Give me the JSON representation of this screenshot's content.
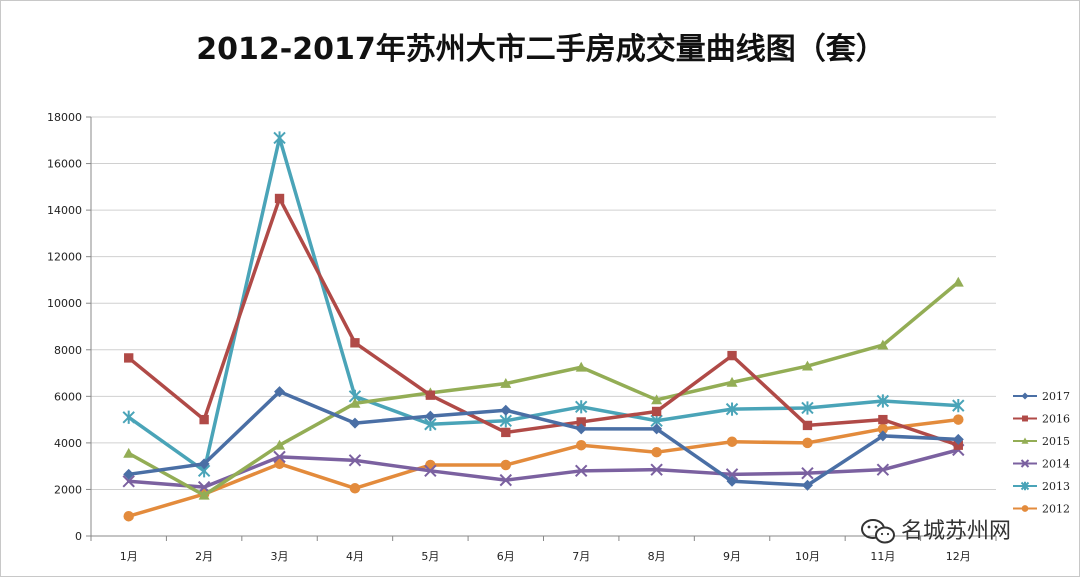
{
  "chart_data": {
    "type": "line",
    "title": "2012-2017年苏州大市二手房成交量曲线图（套）",
    "categories": [
      "1月",
      "2月",
      "3月",
      "4月",
      "5月",
      "6月",
      "7月",
      "8月",
      "9月",
      "10月",
      "11月",
      "12月"
    ],
    "ylim": [
      0,
      18000
    ],
    "yticks": [
      0,
      2000,
      4000,
      6000,
      8000,
      10000,
      12000,
      14000,
      16000,
      18000
    ],
    "grid": true,
    "legend_position": "right",
    "series": [
      {
        "name": "2017",
        "color": "#4a6fa5",
        "marker": "diamond",
        "values": [
          2650,
          3100,
          6200,
          4850,
          5150,
          5400,
          4600,
          4600,
          2350,
          2180,
          4300,
          4150
        ]
      },
      {
        "name": "2016",
        "color": "#b04a47",
        "marker": "square",
        "values": [
          7650,
          5000,
          14500,
          8300,
          6050,
          4450,
          4900,
          5350,
          7750,
          4750,
          5000,
          3900
        ]
      },
      {
        "name": "2015",
        "color": "#93ad55",
        "marker": "triangle",
        "values": [
          3550,
          1750,
          3900,
          5700,
          6150,
          6550,
          7250,
          5850,
          6600,
          7300,
          8200,
          10900
        ]
      },
      {
        "name": "2014",
        "color": "#7b61a0",
        "marker": "x",
        "values": [
          2350,
          2100,
          3400,
          3250,
          2800,
          2400,
          2800,
          2850,
          2650,
          2700,
          2850,
          3700
        ]
      },
      {
        "name": "2013",
        "color": "#4aa4b8",
        "marker": "star",
        "values": [
          5100,
          2800,
          17100,
          6000,
          4800,
          4950,
          5550,
          4950,
          5450,
          5500,
          5800,
          5600
        ]
      },
      {
        "name": "2012",
        "color": "#e38b3c",
        "marker": "circle",
        "values": [
          850,
          1800,
          3100,
          2050,
          3050,
          3050,
          3900,
          3600,
          4050,
          4000,
          4600,
          5000
        ]
      }
    ]
  },
  "watermark": {
    "icon": "wechat-icon",
    "text": "名城苏州网"
  }
}
